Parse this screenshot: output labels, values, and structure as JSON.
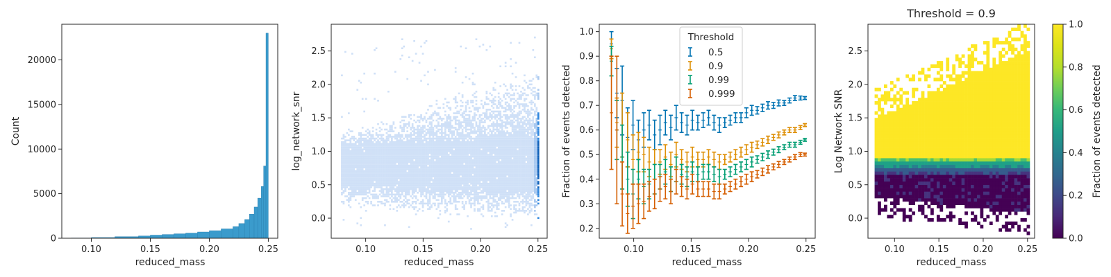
{
  "chart_data": [
    {
      "type": "bar",
      "subtype": "histogram",
      "xlabel": "reduced_mass",
      "ylabel": "Count",
      "xlim": [
        0.075,
        0.258
      ],
      "ylim": [
        0,
        24000
      ],
      "xticks": [
        0.1,
        0.15,
        0.2,
        0.25
      ],
      "xtick_labels": [
        "0.10",
        "0.15",
        "0.20",
        "0.25"
      ],
      "yticks": [
        0,
        5000,
        10000,
        15000,
        20000
      ],
      "ytick_labels": [
        "0",
        "5000",
        "10000",
        "15000",
        "20000"
      ],
      "color": "#3b9bcc",
      "bins": [
        {
          "x0": 0.083,
          "x1": 0.1,
          "value": 30
        },
        {
          "x0": 0.1,
          "x1": 0.12,
          "value": 80
        },
        {
          "x0": 0.12,
          "x1": 0.14,
          "value": 180
        },
        {
          "x0": 0.14,
          "x1": 0.15,
          "value": 260
        },
        {
          "x0": 0.15,
          "x1": 0.16,
          "value": 350
        },
        {
          "x0": 0.16,
          "x1": 0.17,
          "value": 420
        },
        {
          "x0": 0.17,
          "x1": 0.18,
          "value": 500
        },
        {
          "x0": 0.18,
          "x1": 0.19,
          "value": 580
        },
        {
          "x0": 0.19,
          "x1": 0.2,
          "value": 700
        },
        {
          "x0": 0.2,
          "x1": 0.21,
          "value": 850
        },
        {
          "x0": 0.21,
          "x1": 0.22,
          "value": 1050
        },
        {
          "x0": 0.22,
          "x1": 0.225,
          "value": 1300
        },
        {
          "x0": 0.225,
          "x1": 0.23,
          "value": 1650
        },
        {
          "x0": 0.23,
          "x1": 0.234,
          "value": 2100
        },
        {
          "x0": 0.234,
          "x1": 0.238,
          "value": 2700
        },
        {
          "x0": 0.238,
          "x1": 0.241,
          "value": 3500
        },
        {
          "x0": 0.241,
          "x1": 0.244,
          "value": 4500
        },
        {
          "x0": 0.244,
          "x1": 0.246,
          "value": 5800
        },
        {
          "x0": 0.246,
          "x1": 0.248,
          "value": 8100
        },
        {
          "x0": 0.248,
          "x1": 0.25,
          "value": 23000
        }
      ]
    },
    {
      "type": "heatmap",
      "subtype": "2d-histogram",
      "xlabel": "reduced_mass",
      "ylabel": "log_network_snr",
      "xlim": [
        0.07,
        0.258
      ],
      "ylim": [
        -0.3,
        2.9
      ],
      "xticks": [
        0.1,
        0.15,
        0.2,
        0.25
      ],
      "xtick_labels": [
        "0.10",
        "0.15",
        "0.20",
        "0.25"
      ],
      "yticks": [
        0.0,
        0.5,
        1.0,
        1.5,
        2.0,
        2.5
      ],
      "ytick_labels": [
        "0.0",
        "0.5",
        "1.0",
        "1.5",
        "2.0",
        "2.5"
      ],
      "colors": [
        "#cfe0f7",
        "#a9c9f0",
        "#2e86de",
        "#0a5db8"
      ]
    },
    {
      "type": "line",
      "subtype": "errorbar",
      "xlabel": "reduced_mass",
      "ylabel": "Fraction of events detected",
      "xlim": [
        0.07,
        0.258
      ],
      "ylim": [
        0.16,
        1.03
      ],
      "xticks": [
        0.1,
        0.15,
        0.2,
        0.25
      ],
      "xtick_labels": [
        "0.10",
        "0.15",
        "0.20",
        "0.25"
      ],
      "yticks": [
        0.2,
        0.3,
        0.4,
        0.5,
        0.6,
        0.7,
        0.8,
        0.9,
        1.0
      ],
      "ytick_labels": [
        "0.2",
        "0.3",
        "0.4",
        "0.5",
        "0.6",
        "0.7",
        "0.8",
        "0.9",
        "1.0"
      ],
      "legend_title": "Threshold",
      "legend_position": "top-center",
      "x": [
        0.0806,
        0.0853,
        0.09,
        0.0947,
        0.0994,
        0.1041,
        0.1088,
        0.1135,
        0.1182,
        0.1229,
        0.1276,
        0.1323,
        0.137,
        0.1417,
        0.1464,
        0.1511,
        0.1558,
        0.1605,
        0.1652,
        0.1699,
        0.1746,
        0.1793,
        0.184,
        0.1887,
        0.1934,
        0.1981,
        0.2028,
        0.2075,
        0.2122,
        0.2169,
        0.2216,
        0.2263,
        0.231,
        0.2357,
        0.2404,
        0.2451,
        0.249
      ],
      "series": [
        {
          "name": "0.5",
          "color": "#0173b2",
          "values": [
            0.95,
            0.75,
            0.72,
            0.57,
            0.62,
            0.56,
            0.6,
            0.62,
            0.58,
            0.6,
            0.63,
            0.61,
            0.65,
            0.63,
            0.62,
            0.64,
            0.63,
            0.64,
            0.65,
            0.63,
            0.62,
            0.63,
            0.64,
            0.65,
            0.65,
            0.67,
            0.68,
            0.68,
            0.69,
            0.7,
            0.7,
            0.71,
            0.71,
            0.72,
            0.73,
            0.73,
            0.73
          ],
          "errors": [
            0.05,
            0.1,
            0.14,
            0.12,
            0.1,
            0.08,
            0.07,
            0.06,
            0.06,
            0.06,
            0.05,
            0.05,
            0.05,
            0.04,
            0.04,
            0.04,
            0.03,
            0.03,
            0.03,
            0.03,
            0.03,
            0.02,
            0.02,
            0.02,
            0.02,
            0.02,
            0.02,
            0.015,
            0.015,
            0.015,
            0.012,
            0.012,
            0.01,
            0.01,
            0.01,
            0.008,
            0.006
          ]
        },
        {
          "name": "0.9",
          "color": "#de8f05",
          "values": [
            0.93,
            0.63,
            0.62,
            0.56,
            0.48,
            0.51,
            0.5,
            0.47,
            0.46,
            0.47,
            0.49,
            0.46,
            0.5,
            0.48,
            0.47,
            0.49,
            0.48,
            0.48,
            0.49,
            0.48,
            0.47,
            0.48,
            0.49,
            0.5,
            0.51,
            0.52,
            0.53,
            0.54,
            0.55,
            0.56,
            0.57,
            0.58,
            0.59,
            0.6,
            0.6,
            0.61,
            0.62
          ],
          "errors": [
            0.04,
            0.1,
            0.13,
            0.11,
            0.1,
            0.08,
            0.07,
            0.06,
            0.06,
            0.05,
            0.05,
            0.05,
            0.05,
            0.04,
            0.04,
            0.04,
            0.03,
            0.03,
            0.03,
            0.03,
            0.03,
            0.02,
            0.02,
            0.02,
            0.02,
            0.02,
            0.02,
            0.015,
            0.015,
            0.015,
            0.012,
            0.012,
            0.01,
            0.01,
            0.01,
            0.008,
            0.006
          ]
        },
        {
          "name": "0.99",
          "color": "#029e73",
          "values": [
            0.88,
            0.6,
            0.49,
            0.4,
            0.34,
            0.4,
            0.37,
            0.38,
            0.4,
            0.41,
            0.43,
            0.4,
            0.44,
            0.42,
            0.41,
            0.43,
            0.42,
            0.43,
            0.43,
            0.42,
            0.41,
            0.42,
            0.43,
            0.44,
            0.45,
            0.46,
            0.47,
            0.48,
            0.49,
            0.5,
            0.51,
            0.52,
            0.53,
            0.54,
            0.54,
            0.55,
            0.56
          ],
          "errors": [
            0.06,
            0.12,
            0.13,
            0.11,
            0.1,
            0.08,
            0.07,
            0.06,
            0.06,
            0.05,
            0.05,
            0.05,
            0.05,
            0.04,
            0.04,
            0.04,
            0.03,
            0.03,
            0.03,
            0.03,
            0.03,
            0.02,
            0.02,
            0.02,
            0.02,
            0.02,
            0.02,
            0.015,
            0.015,
            0.015,
            0.012,
            0.012,
            0.01,
            0.01,
            0.01,
            0.008,
            0.006
          ]
        },
        {
          "name": "0.999",
          "color": "#d55e00",
          "values": [
            0.67,
            0.6,
            0.34,
            0.26,
            0.29,
            0.3,
            0.31,
            0.33,
            0.34,
            0.36,
            0.37,
            0.35,
            0.39,
            0.37,
            0.36,
            0.38,
            0.36,
            0.36,
            0.36,
            0.35,
            0.35,
            0.36,
            0.37,
            0.38,
            0.39,
            0.4,
            0.41,
            0.42,
            0.43,
            0.44,
            0.45,
            0.46,
            0.47,
            0.48,
            0.49,
            0.5,
            0.5
          ],
          "errors": [
            0.23,
            0.3,
            0.13,
            0.08,
            0.09,
            0.08,
            0.07,
            0.06,
            0.06,
            0.05,
            0.05,
            0.05,
            0.05,
            0.04,
            0.04,
            0.04,
            0.03,
            0.03,
            0.03,
            0.03,
            0.03,
            0.02,
            0.02,
            0.02,
            0.02,
            0.02,
            0.02,
            0.015,
            0.015,
            0.015,
            0.012,
            0.012,
            0.01,
            0.01,
            0.01,
            0.008,
            0.006
          ]
        }
      ]
    },
    {
      "type": "heatmap",
      "title": "Threshold = 0.9",
      "xlabel": "reduced_mass",
      "ylabel": "Log Network SNR",
      "xlim": [
        0.07,
        0.258
      ],
      "ylim": [
        -0.3,
        2.9
      ],
      "xticks": [
        0.1,
        0.15,
        0.2,
        0.25
      ],
      "xtick_labels": [
        "0.10",
        "0.15",
        "0.20",
        "0.25"
      ],
      "yticks": [
        0.0,
        0.5,
        1.0,
        1.5,
        2.0,
        2.5
      ],
      "ytick_labels": [
        "0.0",
        "0.5",
        "1.0",
        "1.5",
        "2.0",
        "2.5"
      ],
      "detection_boundary_snr": 0.9,
      "colorbar": {
        "label": "Fraction of events detected",
        "colormap": "viridis",
        "range": [
          0.0,
          1.0
        ],
        "ticks": [
          0.0,
          0.2,
          0.4,
          0.6,
          0.8,
          1.0
        ],
        "tick_labels": [
          "0.0",
          "0.2",
          "0.4",
          "0.6",
          "0.8",
          "1.0"
        ]
      }
    }
  ]
}
